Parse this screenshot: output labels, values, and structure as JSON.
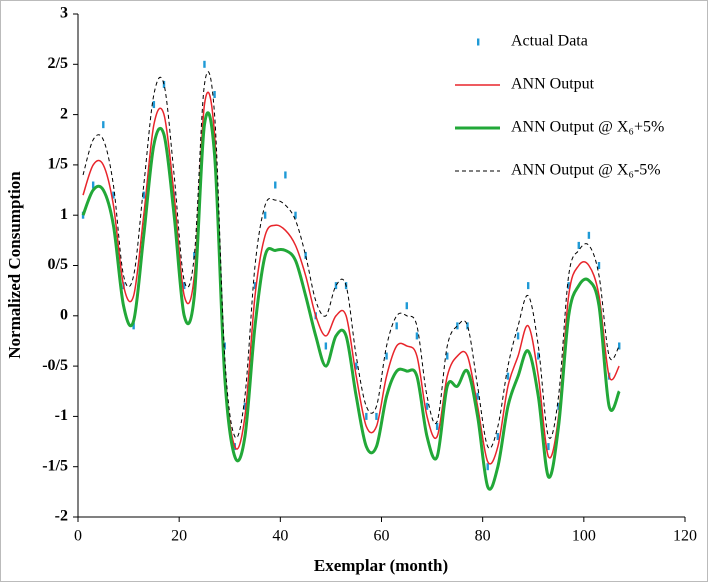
{
  "chart_data": {
    "type": "line",
    "x_label": "Exemplar (month)",
    "y_label": "Normalized Consumption",
    "x": [
      1,
      3,
      5,
      7,
      9,
      11,
      13,
      15,
      17,
      19,
      21,
      23,
      25,
      27,
      29,
      31,
      33,
      35,
      37,
      39,
      41,
      43,
      45,
      47,
      49,
      51,
      53,
      55,
      57,
      59,
      61,
      63,
      65,
      67,
      69,
      71,
      73,
      75,
      77,
      79,
      81,
      83,
      85,
      87,
      89,
      91,
      93,
      95,
      97,
      99,
      101,
      103,
      105,
      107
    ],
    "series": [
      {
        "name": "Actual Data",
        "color": "#1f9ad6",
        "style": "markers",
        "values": [
          1.0,
          1.3,
          1.9,
          1.2,
          0.3,
          -0.1,
          1.2,
          2.1,
          2.3,
          1.2,
          0.3,
          0.6,
          2.5,
          2.2,
          -0.3,
          -1.3,
          -0.9,
          0.3,
          1.0,
          1.3,
          1.4,
          1.0,
          0.6,
          0.0,
          -0.3,
          0.3,
          0.3,
          -0.5,
          -1.0,
          -1.0,
          -0.4,
          -0.1,
          0.1,
          -0.2,
          -0.9,
          -1.1,
          -0.4,
          -0.1,
          -0.1,
          -0.8,
          -1.5,
          -1.2,
          -0.6,
          -0.2,
          0.3,
          -0.4,
          -1.3,
          -0.9,
          0.3,
          0.7,
          0.8,
          0.5,
          -0.6,
          -0.3
        ]
      },
      {
        "name": "ANN Output",
        "color": "#e8252b",
        "style": "solid",
        "width": 1.5,
        "values": [
          1.2,
          1.5,
          1.5,
          1.1,
          0.3,
          0.2,
          1.0,
          1.9,
          2.0,
          1.2,
          0.2,
          0.4,
          2.1,
          1.8,
          -0.5,
          -1.3,
          -1.0,
          0.2,
          0.8,
          0.9,
          0.85,
          0.7,
          0.4,
          0.0,
          -0.2,
          0.0,
          0.0,
          -0.6,
          -1.1,
          -1.1,
          -0.6,
          -0.3,
          -0.3,
          -0.4,
          -1.0,
          -1.2,
          -0.6,
          -0.4,
          -0.4,
          -0.9,
          -1.45,
          -1.3,
          -0.7,
          -0.4,
          -0.1,
          -0.6,
          -1.4,
          -1.0,
          0.2,
          0.5,
          0.5,
          0.2,
          -0.6,
          -0.5
        ]
      },
      {
        "name": "ANN Output @ X₆+5%",
        "color": "#22a838",
        "style": "solid",
        "width": 3,
        "values": [
          1.0,
          1.25,
          1.25,
          0.9,
          0.1,
          -0.05,
          0.8,
          1.7,
          1.8,
          1.0,
          0.0,
          0.2,
          1.9,
          1.6,
          -0.6,
          -1.4,
          -1.2,
          -0.1,
          0.6,
          0.65,
          0.65,
          0.55,
          0.2,
          -0.2,
          -0.5,
          -0.2,
          -0.2,
          -0.8,
          -1.3,
          -1.3,
          -0.8,
          -0.55,
          -0.55,
          -0.6,
          -1.2,
          -1.4,
          -0.7,
          -0.7,
          -0.55,
          -1.0,
          -1.7,
          -1.5,
          -0.9,
          -0.6,
          -0.35,
          -0.8,
          -1.6,
          -1.1,
          0.0,
          0.3,
          0.35,
          0.1,
          -0.9,
          -0.75
        ]
      },
      {
        "name": "ANN Output @ X₆-5%",
        "color": "#000000",
        "style": "dashed",
        "width": 1,
        "values": [
          1.4,
          1.75,
          1.75,
          1.3,
          0.4,
          0.4,
          1.3,
          2.2,
          2.3,
          1.4,
          0.35,
          0.6,
          2.3,
          2.0,
          -0.4,
          -1.2,
          -0.8,
          0.5,
          1.1,
          1.15,
          1.1,
          0.95,
          0.6,
          0.15,
          0.0,
          0.3,
          0.3,
          -0.4,
          -0.9,
          -0.9,
          -0.3,
          0.0,
          0.0,
          -0.1,
          -0.8,
          -1.05,
          -0.3,
          -0.1,
          -0.1,
          -0.7,
          -1.3,
          -1.1,
          -0.5,
          -0.1,
          0.2,
          -0.3,
          -1.2,
          -0.8,
          0.4,
          0.65,
          0.7,
          0.4,
          -0.4,
          -0.3
        ]
      }
    ],
    "xlim": [
      0,
      120
    ],
    "xticks": [
      0,
      20,
      40,
      60,
      80,
      100,
      120
    ],
    "ylim": [
      -2,
      3
    ],
    "yticks": [
      {
        "value": -2,
        "label": "-2"
      },
      {
        "value": -1.5,
        "label": "-1/5"
      },
      {
        "value": -1,
        "label": "-1"
      },
      {
        "value": -0.5,
        "label": "-0/5"
      },
      {
        "value": 0,
        "label": "0"
      },
      {
        "value": 0.5,
        "label": "0/5"
      },
      {
        "value": 1,
        "label": "1"
      },
      {
        "value": 1.5,
        "label": "1/5"
      },
      {
        "value": 2,
        "label": "2"
      },
      {
        "value": 2.5,
        "label": "2/5"
      },
      {
        "value": 3,
        "label": "3"
      }
    ],
    "grid": false,
    "legend": "top-right"
  }
}
